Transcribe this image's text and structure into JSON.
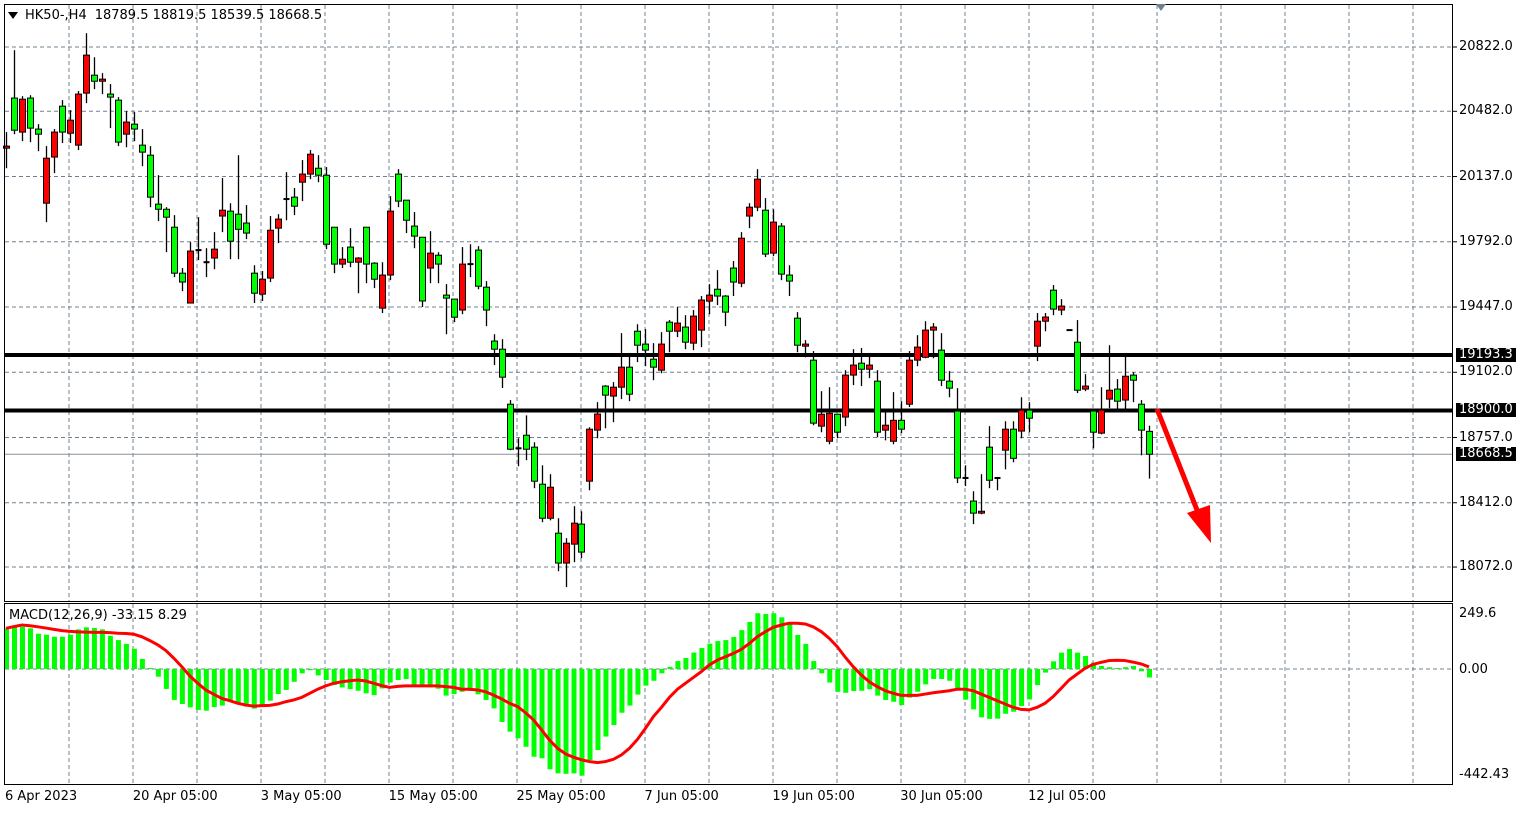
{
  "header": {
    "symbol": "HK50-,H4",
    "ohlc": "18789.5 18819.5 18539.5 18668.5"
  },
  "colors": {
    "bull": "#ff0000",
    "bear": "#00ff00",
    "macd_hist": "#00ff00",
    "signal": "#ff0000",
    "arrow": "#ff0000",
    "grid": "#708090"
  },
  "chart_data": [
    {
      "type": "candlestick",
      "title": "HK50-,H4",
      "y_ticks": [
        "20822.0",
        "20482.0",
        "20137.0",
        "19792.0",
        "19447.0",
        "19102.0",
        "18757.0",
        "18412.0",
        "18072.0"
      ],
      "x_ticks": [
        "6 Apr 2023",
        "20 Apr 05:00",
        "3 May 05:00",
        "15 May 05:00",
        "25 May 05:00",
        "7 Jun 05:00",
        "19 Jun 05:00",
        "30 Jun 05:00",
        "12 Jul 05:00"
      ],
      "x_tick_every_bars": 16,
      "grid": true,
      "horizontal_levels": [
        {
          "value": "19193.3"
        },
        {
          "value": "18900.0"
        }
      ],
      "current_price": "18668.5",
      "annotation": "red arrow pointing down from 18900 level",
      "ohlc": [
        [
          20287,
          20372,
          20181,
          20298
        ],
        [
          20552,
          20805,
          20361,
          20382
        ],
        [
          20372,
          20562,
          20324,
          20546
        ],
        [
          20552,
          20567,
          20319,
          20393
        ],
        [
          20388,
          20414,
          20271,
          20361
        ],
        [
          19996,
          20298,
          19896,
          20234
        ],
        [
          20240,
          20388,
          20155,
          20372
        ],
        [
          20509,
          20541,
          20314,
          20372
        ],
        [
          20366,
          20488,
          20314,
          20435
        ],
        [
          20303,
          20589,
          20277,
          20573
        ],
        [
          20578,
          20895,
          20525,
          20779
        ],
        [
          20673,
          20768,
          20599,
          20641
        ],
        [
          20641,
          20684,
          20573,
          20652
        ],
        [
          20573,
          20626,
          20393,
          20557
        ],
        [
          20541,
          20557,
          20298,
          20319
        ],
        [
          20361,
          20483,
          20292,
          20425
        ],
        [
          20414,
          20478,
          20324,
          20388
        ],
        [
          20303,
          20388,
          20192,
          20266
        ],
        [
          20250,
          20298,
          19975,
          20028
        ],
        [
          19991,
          20144,
          19901,
          19964
        ],
        [
          19964,
          19975,
          19737,
          19922
        ],
        [
          19869,
          19933,
          19605,
          19626
        ],
        [
          19626,
          19653,
          19531,
          19579
        ],
        [
          19468,
          19790,
          19468,
          19743
        ],
        [
          19748,
          19922,
          19695,
          19748
        ],
        [
          19684,
          19758,
          19605,
          19684
        ],
        [
          19706,
          19843,
          19647,
          19753
        ],
        [
          19928,
          20129,
          19843,
          19959
        ],
        [
          19954,
          19996,
          19700,
          19795
        ],
        [
          19938,
          20250,
          19700,
          19858
        ],
        [
          19891,
          19986,
          19806,
          19838
        ],
        [
          19626,
          19668,
          19468,
          19520
        ],
        [
          19515,
          19637,
          19479,
          19594
        ],
        [
          19600,
          19928,
          19579,
          19853
        ],
        [
          19864,
          19938,
          19785,
          19912
        ],
        [
          20018,
          20160,
          19906,
          20018
        ],
        [
          20028,
          20076,
          19933,
          19980
        ],
        [
          20107,
          20224,
          20007,
          20150
        ],
        [
          20150,
          20277,
          20123,
          20255
        ],
        [
          20181,
          20250,
          20107,
          20144
        ],
        [
          20144,
          20187,
          19753,
          19779
        ],
        [
          19869,
          19869,
          19626,
          19674
        ],
        [
          19674,
          19764,
          19653,
          19700
        ],
        [
          19764,
          19864,
          19658,
          19684
        ],
        [
          19684,
          19711,
          19520,
          19706
        ],
        [
          19869,
          19869,
          19573,
          19674
        ],
        [
          19679,
          19684,
          19547,
          19594
        ],
        [
          19441,
          19684,
          19415,
          19616
        ],
        [
          19616,
          20033,
          19589,
          19954
        ],
        [
          20150,
          20176,
          19975,
          20007
        ],
        [
          20012,
          20012,
          19838,
          19906
        ],
        [
          19875,
          19949,
          19758,
          19822
        ],
        [
          19816,
          19816,
          19447,
          19479
        ],
        [
          19653,
          19848,
          19573,
          19732
        ],
        [
          19721,
          19737,
          19573,
          19674
        ],
        [
          19510,
          19568,
          19303,
          19494
        ],
        [
          19489,
          19489,
          19367,
          19393
        ],
        [
          19431,
          19764,
          19409,
          19674
        ],
        [
          19674,
          19779,
          19605,
          19674
        ],
        [
          19748,
          19769,
          19541,
          19557
        ],
        [
          19552,
          19584,
          19346,
          19431
        ],
        [
          19267,
          19303,
          19140,
          19224
        ],
        [
          19224,
          19277,
          19019,
          19076
        ],
        [
          18933,
          18955,
          18690,
          18695
        ],
        [
          18700,
          18753,
          18605,
          18700
        ],
        [
          18769,
          18874,
          18637,
          18695
        ],
        [
          18706,
          18732,
          18489,
          18526
        ],
        [
          18510,
          18610,
          18309,
          18330
        ],
        [
          18330,
          18563,
          18319,
          18494
        ],
        [
          18251,
          18330,
          18050,
          18093
        ],
        [
          18093,
          18225,
          17966,
          18198
        ],
        [
          18193,
          18394,
          18098,
          18304
        ],
        [
          18299,
          18367,
          18119,
          18151
        ],
        [
          18526,
          18811,
          18478,
          18801
        ],
        [
          18796,
          18944,
          18753,
          18881
        ],
        [
          19029,
          19034,
          18806,
          18981
        ],
        [
          18976,
          19050,
          18838,
          19023
        ],
        [
          19023,
          19309,
          18960,
          19129
        ],
        [
          19129,
          19193,
          18949,
          18986
        ],
        [
          19319,
          19356,
          19156,
          19245
        ],
        [
          19251,
          19330,
          19134,
          19219
        ],
        [
          19171,
          19256,
          19060,
          19129
        ],
        [
          19113,
          19314,
          19097,
          19251
        ],
        [
          19367,
          19378,
          19208,
          19319
        ],
        [
          19319,
          19447,
          19288,
          19362
        ],
        [
          19341,
          19404,
          19224,
          19261
        ],
        [
          19256,
          19431,
          19219,
          19399
        ],
        [
          19325,
          19505,
          19235,
          19484
        ],
        [
          19478,
          19568,
          19409,
          19510
        ],
        [
          19541,
          19642,
          19457,
          19505
        ],
        [
          19505,
          19510,
          19346,
          19420
        ],
        [
          19653,
          19690,
          19505,
          19579
        ],
        [
          19573,
          19843,
          19552,
          19811
        ],
        [
          19928,
          19996,
          19864,
          19975
        ],
        [
          19975,
          20176,
          19954,
          20123
        ],
        [
          19959,
          20023,
          19711,
          19727
        ],
        [
          19732,
          19964,
          19716,
          19896
        ],
        [
          19875,
          19891,
          19589,
          19621
        ],
        [
          19616,
          19668,
          19505,
          19584
        ],
        [
          19388,
          19420,
          19208,
          19245
        ],
        [
          19240,
          19272,
          19181,
          19251
        ],
        [
          19166,
          19214,
          18822,
          18833
        ],
        [
          18817,
          19002,
          18785,
          18880
        ],
        [
          18737,
          19023,
          18721,
          18885
        ],
        [
          18880,
          18880,
          18753,
          18785
        ],
        [
          18865,
          19113,
          18817,
          19087
        ],
        [
          19087,
          19224,
          19034,
          19140
        ],
        [
          19150,
          19230,
          19029,
          19118
        ],
        [
          19118,
          19187,
          19071,
          19140
        ],
        [
          19055,
          19113,
          18758,
          18785
        ],
        [
          18796,
          18891,
          18742,
          18822
        ],
        [
          18737,
          18997,
          18721,
          18848
        ],
        [
          18848,
          18949,
          18780,
          18801
        ],
        [
          18933,
          19214,
          18918,
          19166
        ],
        [
          19166,
          19298,
          19134,
          19235
        ],
        [
          19181,
          19372,
          19176,
          19325
        ],
        [
          19325,
          19362,
          19176,
          19341
        ],
        [
          19219,
          19309,
          19029,
          19060
        ],
        [
          19055,
          19108,
          18970,
          19018
        ],
        [
          18897,
          19018,
          18516,
          18543
        ],
        [
          18543,
          18610,
          18500,
          18543
        ],
        [
          18421,
          18473,
          18299,
          18357
        ],
        [
          18357,
          18563,
          18351,
          18367
        ],
        [
          18706,
          18817,
          18489,
          18531
        ],
        [
          18543,
          18548,
          18478,
          18543
        ],
        [
          18690,
          18843,
          18589,
          18801
        ],
        [
          18801,
          18843,
          18626,
          18647
        ],
        [
          18791,
          18970,
          18753,
          18902
        ],
        [
          18902,
          18944,
          18785,
          18859
        ],
        [
          19240,
          19415,
          19161,
          19372
        ],
        [
          19372,
          19415,
          19319,
          19394
        ],
        [
          19536,
          19563,
          19404,
          19436
        ],
        [
          19431,
          19489,
          19404,
          19452
        ],
        [
          19325,
          19325,
          19325,
          19325
        ],
        [
          19261,
          19378,
          18992,
          19007
        ],
        [
          19013,
          19092,
          19002,
          19029
        ],
        [
          18897,
          18897,
          18700,
          18785
        ],
        [
          18780,
          19023,
          18774,
          18902
        ],
        [
          18960,
          19245,
          18912,
          19007
        ],
        [
          19013,
          19066,
          18897,
          18949
        ],
        [
          18955,
          19187,
          18897,
          19081
        ],
        [
          19087,
          19102,
          18944,
          19060
        ],
        [
          18933,
          18955,
          18663,
          18796
        ],
        [
          18789.5,
          18819.5,
          18539.5,
          18668.5
        ]
      ]
    },
    {
      "type": "bar+line",
      "title": "MACD(12,26,9)",
      "last_values": "-33.15 8.29",
      "y_ticks": [
        "249.6",
        "0.00",
        "-442.43"
      ],
      "ylim": [
        -442.43,
        249.6
      ],
      "macd": [
        159,
        165,
        165,
        159,
        138,
        134,
        126,
        126,
        134,
        155,
        163,
        160,
        155,
        130,
        113,
        98,
        79,
        39,
        4,
        -30,
        -78,
        -121,
        -137,
        -150,
        -160,
        -163,
        -149,
        -143,
        -121,
        -130,
        -147,
        -155,
        -145,
        -124,
        -98,
        -82,
        -50,
        -17,
        -5,
        -25,
        -43,
        -63,
        -72,
        -79,
        -85,
        -95,
        -102,
        -76,
        -53,
        -43,
        -39,
        -63,
        -66,
        -72,
        -77,
        -104,
        -98,
        -89,
        -85,
        -99,
        -121,
        -154,
        -207,
        -245,
        -271,
        -304,
        -343,
        -349,
        -392,
        -408,
        -410,
        -408,
        -417,
        -356,
        -317,
        -264,
        -219,
        -171,
        -143,
        -100,
        -65,
        -46,
        -17,
        8,
        31,
        43,
        64,
        82,
        99,
        109,
        113,
        125,
        152,
        184,
        218,
        215,
        218,
        202,
        179,
        133,
        98,
        31,
        -17,
        -53,
        -89,
        -93,
        -86,
        -85,
        -79,
        -104,
        -121,
        -128,
        -141,
        -112,
        -89,
        -60,
        -39,
        -39,
        -46,
        -82,
        -120,
        -158,
        -189,
        -195,
        -194,
        -175,
        -167,
        -145,
        -119,
        -63,
        -14,
        30,
        64,
        78,
        64,
        51,
        25,
        12,
        7,
        4,
        7,
        12,
        -9,
        -33.15
      ],
      "signal": [
        159,
        166,
        172,
        169,
        165,
        160,
        155,
        150,
        147,
        145,
        144,
        143,
        143,
        142,
        140,
        139,
        136,
        126,
        111,
        94,
        72,
        42,
        9,
        -27,
        -56,
        -82,
        -99,
        -115,
        -124,
        -134,
        -141,
        -145,
        -143,
        -142,
        -137,
        -128,
        -121,
        -111,
        -95,
        -79,
        -66,
        -56,
        -50,
        -46,
        -43,
        -47,
        -56,
        -65,
        -72,
        -68,
        -66,
        -66,
        -66,
        -66,
        -66,
        -69,
        -72,
        -79,
        -79,
        -82,
        -89,
        -102,
        -117,
        -134,
        -147,
        -171,
        -199,
        -238,
        -278,
        -310,
        -332,
        -345,
        -355,
        -362,
        -366,
        -362,
        -353,
        -336,
        -310,
        -275,
        -232,
        -186,
        -150,
        -111,
        -79,
        -56,
        -33,
        -10,
        16,
        35,
        48,
        61,
        77,
        100,
        126,
        146,
        163,
        172,
        179,
        179,
        176,
        165,
        146,
        120,
        87,
        46,
        9,
        -23,
        -50,
        -69,
        -85,
        -95,
        -103,
        -103,
        -103,
        -98,
        -93,
        -89,
        -85,
        -79,
        -79,
        -85,
        -98,
        -111,
        -124,
        -137,
        -150,
        -158,
        -160,
        -150,
        -134,
        -108,
        -76,
        -43,
        -20,
        3,
        18,
        26,
        33,
        34,
        33,
        27,
        20,
        8.29
      ]
    }
  ]
}
